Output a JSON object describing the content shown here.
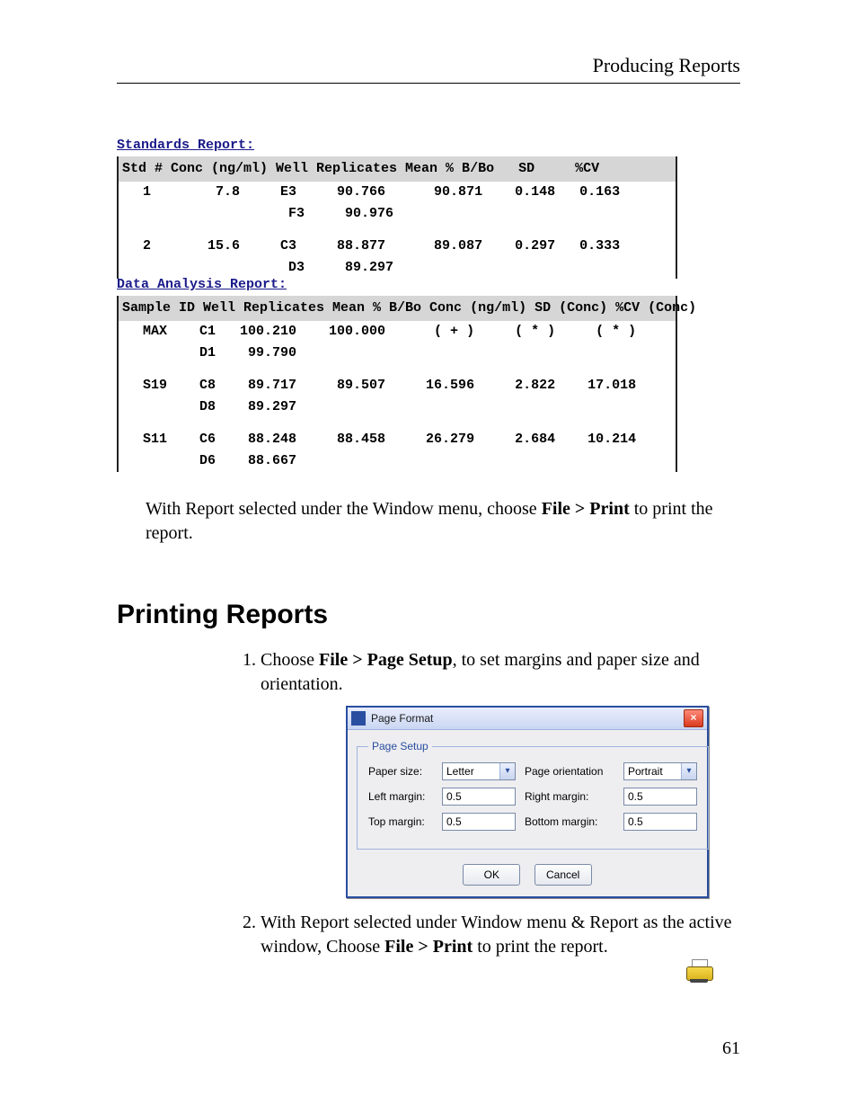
{
  "header": {
    "title": "Producing Reports"
  },
  "standards_report": {
    "title": "Standards Report:",
    "columns": [
      "Std #",
      "Conc (ng/ml)",
      "Well",
      "Replicates",
      "Mean % B/Bo",
      "SD",
      "%CV"
    ],
    "rows": [
      {
        "std": "1",
        "conc": "7.8",
        "wells": [
          "E3",
          "F3"
        ],
        "reps": [
          "90.766",
          "90.976"
        ],
        "mean": "90.871",
        "sd": "0.148",
        "cv": "0.163"
      },
      {
        "std": "2",
        "conc": "15.6",
        "wells": [
          "C3",
          "D3"
        ],
        "reps": [
          "88.877",
          "89.297"
        ],
        "mean": "89.087",
        "sd": "0.297",
        "cv": "0.333"
      }
    ]
  },
  "data_analysis_report": {
    "title": "Data Analysis Report:",
    "columns": [
      "Sample ID",
      "Well",
      "Replicates",
      "Mean % B/Bo",
      "Conc (ng/ml)",
      "SD (Conc)",
      "%CV (Conc)"
    ],
    "rows": [
      {
        "sid": "MAX",
        "wells": [
          "C1",
          "D1"
        ],
        "reps": [
          "100.210",
          "99.790"
        ],
        "mean": "100.000",
        "conc": "( + )",
        "sdc": "( * )",
        "cvc": "( * )"
      },
      {
        "sid": "S19",
        "wells": [
          "C8",
          "D8"
        ],
        "reps": [
          "89.717",
          "89.297"
        ],
        "mean": "89.507",
        "conc": "16.596",
        "sdc": "2.822",
        "cvc": "17.018"
      },
      {
        "sid": "S11",
        "wells": [
          "C6",
          "D6"
        ],
        "reps": [
          "88.248",
          "88.667"
        ],
        "mean": "88.458",
        "conc": "26.279",
        "sdc": "2.684",
        "cvc": "10.214"
      }
    ]
  },
  "para1": {
    "pre": "With Report selected under the Window menu, choose ",
    "bold": "File >  Print",
    "post": "  to print the report."
  },
  "section_heading": "Printing Reports",
  "step1": {
    "pre": "Choose ",
    "bold": "File > Page Setup",
    "post": ", to set margins and paper size and orientation."
  },
  "dialog": {
    "title": "Page Format",
    "legend": "Page Setup",
    "labels": {
      "paper_size": "Paper size:",
      "page_orientation": "Page orientation",
      "left_margin": "Left margin:",
      "right_margin": "Right margin:",
      "top_margin": "Top margin:",
      "bottom_margin": "Bottom margin:"
    },
    "values": {
      "paper_size": "Letter",
      "page_orientation": "Portrait",
      "left_margin": "0.5",
      "right_margin": "0.5",
      "top_margin": "0.5",
      "bottom_margin": "0.5"
    },
    "buttons": {
      "ok": "OK",
      "cancel": "Cancel"
    }
  },
  "step2": {
    "pre": "With Report selected under Window menu & Report as the active window, Choose ",
    "bold": "File > Print",
    "post": "  to print the report."
  },
  "page_number": "61",
  "style": {
    "header_row_bg": "#d6d6d6",
    "report_title_color": "#1a1a8a",
    "dialog_border": "#2a4ea0"
  }
}
